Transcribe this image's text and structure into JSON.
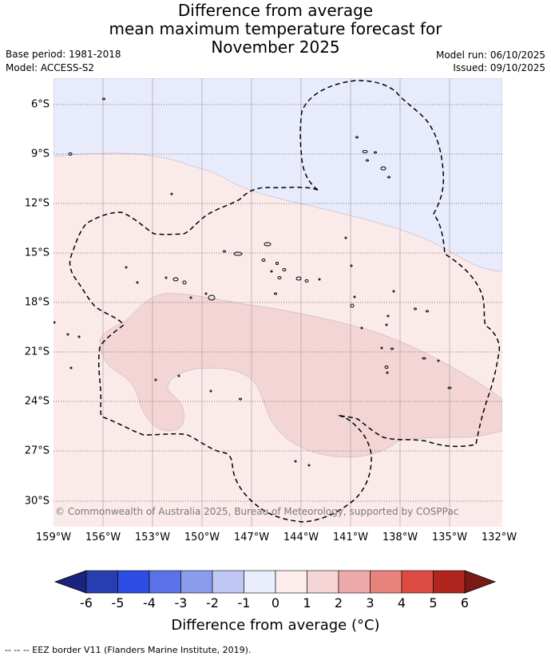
{
  "title": {
    "line1": "Difference from average",
    "line2": "mean maximum temperature forecast for",
    "line3": "November 2025"
  },
  "meta": {
    "base_period": "Base period: 1981-2018",
    "model": "Model: ACCESS-S2",
    "model_run": "Model run: 06/10/2025",
    "issued": "Issued: 09/10/2025"
  },
  "map": {
    "longitude_labels": [
      "159°W",
      "156°W",
      "153°W",
      "150°W",
      "147°W",
      "144°W",
      "141°W",
      "138°W",
      "135°W",
      "132°W"
    ],
    "latitude_labels": [
      "6°S",
      "9°S",
      "12°S",
      "15°S",
      "18°S",
      "21°S",
      "24°S",
      "27°S",
      "30°S"
    ],
    "copyright": "© Commonwealth of Australia 2025, Bureau of Meteorology, supported by COSPPac",
    "regions": [
      {
        "name": "anomaly -1 to 0",
        "color": "#e8ebfb"
      },
      {
        "name": "anomaly 0 to 1",
        "color": "#fbeaea"
      },
      {
        "name": "anomaly 1 to 2",
        "color": "#f4d5d5"
      }
    ]
  },
  "colorbar": {
    "ticks": [
      "-6",
      "-5",
      "-4",
      "-3",
      "-2",
      "-1",
      "0",
      "1",
      "2",
      "3",
      "4",
      "5",
      "6"
    ],
    "colors": [
      "#1a237e",
      "#283eb0",
      "#2e4ee3",
      "#5b72e8",
      "#8b9bee",
      "#c0c6f5",
      "#eaedfc",
      "#fcecec",
      "#f4d4d4",
      "#eeaaaa",
      "#e8827c",
      "#dc4c42",
      "#b0261e",
      "#7a1a16"
    ],
    "label": "Difference from average (°C)"
  },
  "footnote": "--  --  -- EEZ border V11 (Flanders Marine Institute, 2019)."
}
